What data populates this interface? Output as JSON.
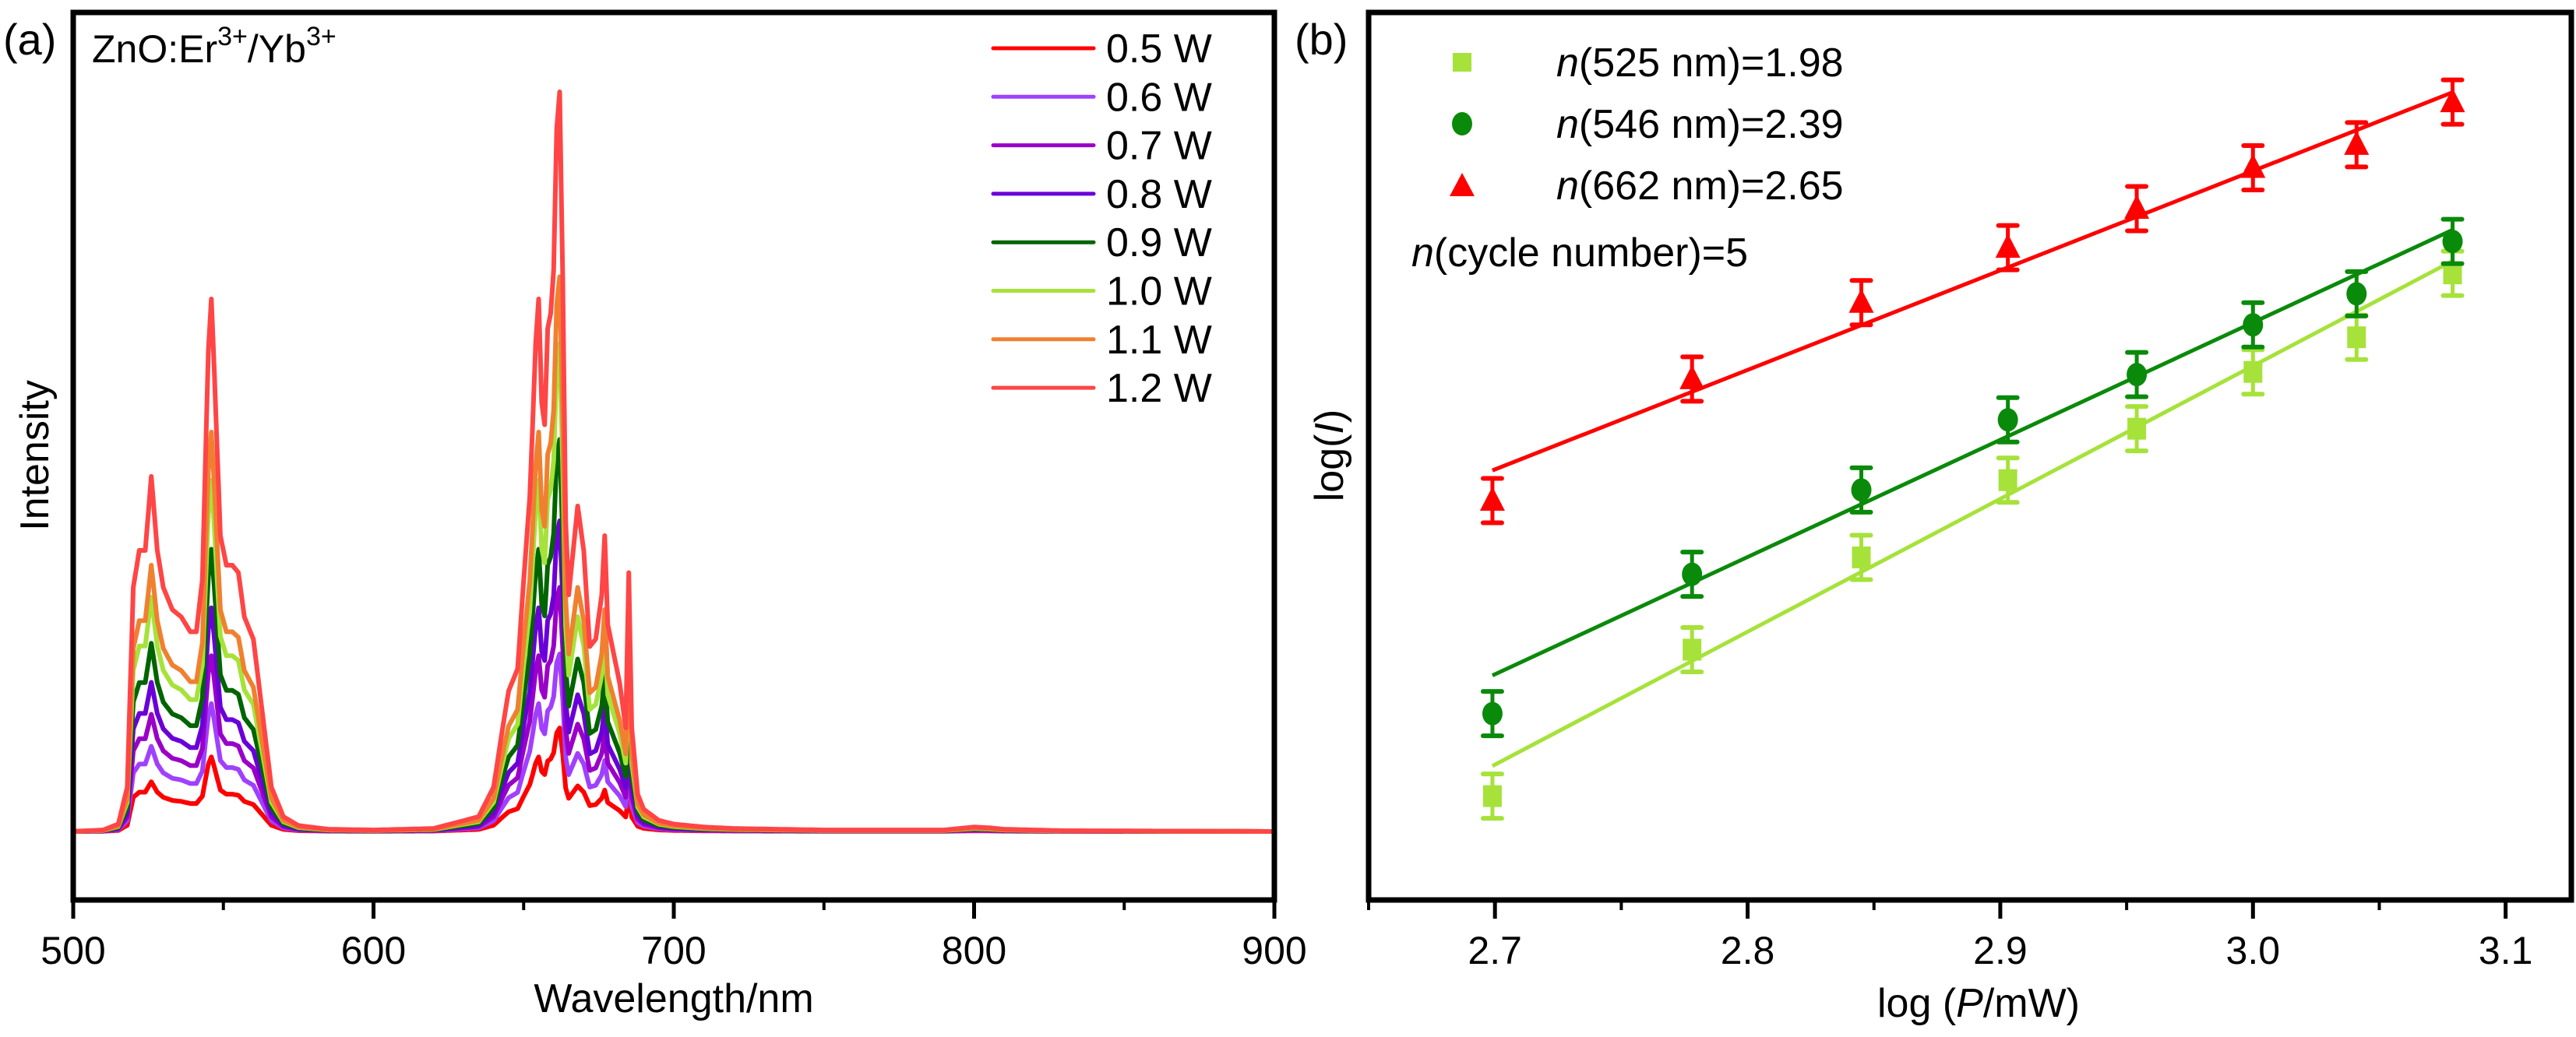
{
  "chart_data": [
    {
      "panel": "(a)",
      "type": "line",
      "title": "",
      "annotation": {
        "base": "ZnO:Er",
        "sup1": "3+",
        "mid": "/Yb",
        "sup2": "3+"
      },
      "xlabel": "Wavelength/nm",
      "ylabel": "Intensity",
      "xlim": [
        500,
        900
      ],
      "ylim": [
        0,
        1.1
      ],
      "xticks": [
        500,
        600,
        700,
        800,
        900
      ],
      "xtick_labels": [
        "500",
        "600",
        "700",
        "800",
        "900"
      ],
      "minor_xticks": [
        550,
        650,
        750,
        850
      ],
      "yticks_shown": false,
      "grid": false,
      "legend_position": "top-right",
      "peak_profile": {
        "note": "relative shape of one spectrum (normalized to the 1.2 W 662 nm peak = 1.0)",
        "x": [
          500,
          510,
          515,
          518,
          520,
          522,
          524,
          526,
          528,
          530,
          533,
          536,
          539,
          541,
          543,
          545,
          546,
          547,
          549,
          551,
          553,
          555,
          557,
          560,
          563,
          566,
          570,
          575,
          585,
          600,
          620,
          635,
          640,
          643,
          645,
          648,
          650,
          652,
          653,
          654,
          655,
          656,
          657,
          658,
          659,
          660,
          661,
          662,
          663,
          664,
          665,
          666,
          668,
          670,
          672,
          674,
          676,
          677,
          678,
          680,
          682,
          684,
          685,
          686,
          688,
          690,
          695,
          700,
          710,
          720,
          750,
          790,
          800,
          805,
          810,
          830,
          900
        ],
        "y": [
          0.0,
          0.002,
          0.01,
          0.06,
          0.33,
          0.38,
          0.38,
          0.48,
          0.38,
          0.33,
          0.3,
          0.29,
          0.27,
          0.27,
          0.34,
          0.65,
          0.72,
          0.62,
          0.4,
          0.36,
          0.36,
          0.35,
          0.29,
          0.26,
          0.16,
          0.06,
          0.02,
          0.008,
          0.003,
          0.002,
          0.004,
          0.02,
          0.06,
          0.14,
          0.19,
          0.22,
          0.34,
          0.45,
          0.55,
          0.66,
          0.72,
          0.58,
          0.55,
          0.68,
          0.7,
          0.76,
          0.95,
          1.0,
          0.75,
          0.42,
          0.32,
          0.36,
          0.44,
          0.38,
          0.25,
          0.26,
          0.32,
          0.4,
          0.28,
          0.24,
          0.2,
          0.14,
          0.35,
          0.14,
          0.05,
          0.03,
          0.015,
          0.01,
          0.006,
          0.004,
          0.002,
          0.002,
          0.006,
          0.005,
          0.003,
          0.001,
          0.0
        ]
      },
      "series": [
        {
          "name": "0.5 W",
          "color": "#ff0000",
          "scale": 0.14
        },
        {
          "name": "0.6 W",
          "color": "#a040ff",
          "scale": 0.24
        },
        {
          "name": "0.7 W",
          "color": "#9a00c8",
          "scale": 0.33
        },
        {
          "name": "0.8 W",
          "color": "#6a00d8",
          "scale": 0.42
        },
        {
          "name": "0.9 W",
          "color": "#006400",
          "scale": 0.53
        },
        {
          "name": "1.0 W",
          "color": "#a6e23a",
          "scale": 0.66
        },
        {
          "name": "1.1 W",
          "color": "#f08030",
          "scale": 0.75
        },
        {
          "name": "1.2 W",
          "color": "#ff4545",
          "scale": 1.0
        }
      ]
    },
    {
      "panel": "(b)",
      "type": "scatter",
      "title": "",
      "xlabel": {
        "pre": "log (",
        "italic": "P",
        "post": "/mW)"
      },
      "ylabel": {
        "pre": "log(",
        "italic": "I",
        "post": ")"
      },
      "xlim": [
        2.65,
        3.126
      ],
      "ylim": [
        0,
        1
      ],
      "xticks": [
        2.7,
        2.8,
        2.9,
        3.0,
        3.1
      ],
      "xtick_labels": [
        "2.7",
        "2.8",
        "2.9",
        "3.0",
        "3.1"
      ],
      "minor_xticks": [
        2.65,
        2.75,
        2.85,
        2.95,
        3.05
      ],
      "yticks_shown": false,
      "y_units": "arbitrary (relative log(I), 0 = bottom of axis, 1 = top)",
      "grid": false,
      "legend_position": "top-left",
      "x": [
        2.699,
        2.778,
        2.845,
        2.903,
        2.954,
        3.0,
        3.041,
        3.079
      ],
      "series": [
        {
          "name_italic": "n",
          "name_rest": "(525 nm)=1.98",
          "marker": "square",
          "color": "#a6e23a",
          "y": [
            0.117,
            0.282,
            0.386,
            0.473,
            0.531,
            0.595,
            0.634,
            0.706
          ],
          "err": 0.025,
          "fit": {
            "x": [
              2.699,
              3.079
            ],
            "y": [
              0.151,
              0.72
            ]
          }
        },
        {
          "name_italic": "n",
          "name_rest": "(546 nm)=2.39",
          "marker": "circle",
          "color": "#0a8a0a",
          "y": [
            0.21,
            0.367,
            0.462,
            0.541,
            0.592,
            0.648,
            0.683,
            0.742
          ],
          "err": 0.025,
          "fit": {
            "x": [
              2.699,
              3.079
            ],
            "y": [
              0.253,
              0.755
            ]
          }
        },
        {
          "name_italic": "n",
          "name_rest": "(662 nm)=2.65",
          "marker": "triangle",
          "color": "#ff0000",
          "y": [
            0.45,
            0.587,
            0.673,
            0.735,
            0.779,
            0.825,
            0.851,
            0.899
          ],
          "err": 0.025,
          "fit": {
            "x": [
              2.699,
              3.079
            ],
            "y": [
              0.484,
              0.91
            ]
          }
        }
      ],
      "annotation": {
        "italic": "n",
        "rest": "(cycle number)=5"
      }
    }
  ]
}
